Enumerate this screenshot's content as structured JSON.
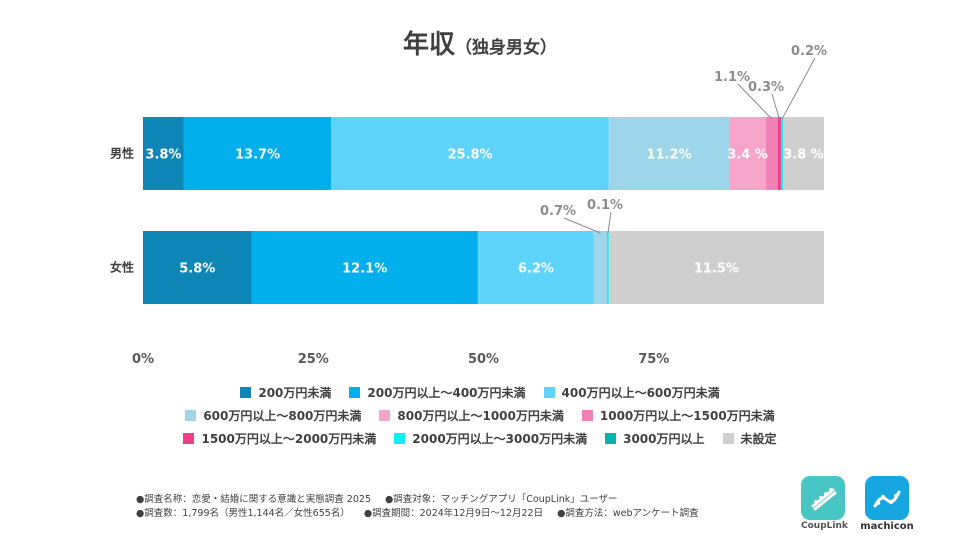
{
  "title": {
    "main": "年収",
    "sub": "（独身男女）"
  },
  "chart_data": {
    "type": "bar",
    "orientation": "horizontal-stacked-100",
    "title": "年収（独身男女）",
    "xlim": [
      0,
      100
    ],
    "ticks": [
      {
        "value": 0,
        "label": "0%"
      },
      {
        "value": 25,
        "label": "25%"
      },
      {
        "value": 50,
        "label": "50%"
      },
      {
        "value": 75,
        "label": "75%"
      }
    ],
    "categories": [
      "男性",
      "女性"
    ],
    "series": [
      {
        "name": "200万円未満",
        "color": "#0e86b8",
        "values": [
          3.8,
          5.8
        ],
        "labels": [
          "3.8%",
          "5.8%"
        ]
      },
      {
        "name": "200万円以上～400万円未満",
        "color": "#00afec",
        "values": [
          13.7,
          12.1
        ],
        "labels": [
          "13.7%",
          "12.1%"
        ]
      },
      {
        "name": "400万円以上～600万円未満",
        "color": "#5ed3fb",
        "values": [
          25.8,
          6.2
        ],
        "labels": [
          "25.8%",
          "6.2%"
        ]
      },
      {
        "name": "600万円以上～800万円未満",
        "color": "#9dd6e8",
        "values": [
          11.2,
          0.7
        ],
        "labels": [
          "11.2%",
          "0.7%"
        ]
      },
      {
        "name": "800万円以上～1000万円未満",
        "color": "#f7a4cb",
        "values": [
          3.4,
          0
        ],
        "labels": [
          "3.4\n%",
          ""
        ]
      },
      {
        "name": "1000万円以上～1500万円未満",
        "color": "#f082b7",
        "values": [
          1.1,
          0
        ],
        "labels": [
          "1.1%",
          ""
        ]
      },
      {
        "name": "1500万円以上～2000万円未満",
        "color": "#ee3f8b",
        "values": [
          0.3,
          0
        ],
        "labels": [
          "0.3%",
          ""
        ]
      },
      {
        "name": "2000万円以上～3000万円未満",
        "color": "#12eef2",
        "values": [
          0.2,
          0.1
        ],
        "labels": [
          "0.2%",
          "0.1%"
        ]
      },
      {
        "name": "3000万円以上",
        "color": "#07b2b2",
        "values": [
          0,
          0
        ],
        "labels": [
          "",
          ""
        ]
      },
      {
        "name": "未設定",
        "color": "#cfcfcf",
        "values": [
          3.8,
          11.5
        ],
        "labels": [
          "3.8\n%",
          "11.5%"
        ]
      }
    ]
  },
  "legend_rows": [
    [
      0,
      1,
      2
    ],
    [
      3,
      4,
      5
    ],
    [
      6,
      7,
      8,
      9
    ]
  ],
  "notes": {
    "line1": [
      "●調査名称：恋愛・結婚に関する意識と実態調査 2025",
      "●調査対象：マッチングアプリ「CoupLink」ユーザー"
    ],
    "line2": [
      "●調査数：1,799名（男性1,144名／女性655名）",
      "●調査期間：2024年12月9日～12月22日",
      "●調査方法：webアンケート調査"
    ]
  },
  "logos": {
    "couplink": "CoupLink",
    "machicon": "machicon"
  }
}
